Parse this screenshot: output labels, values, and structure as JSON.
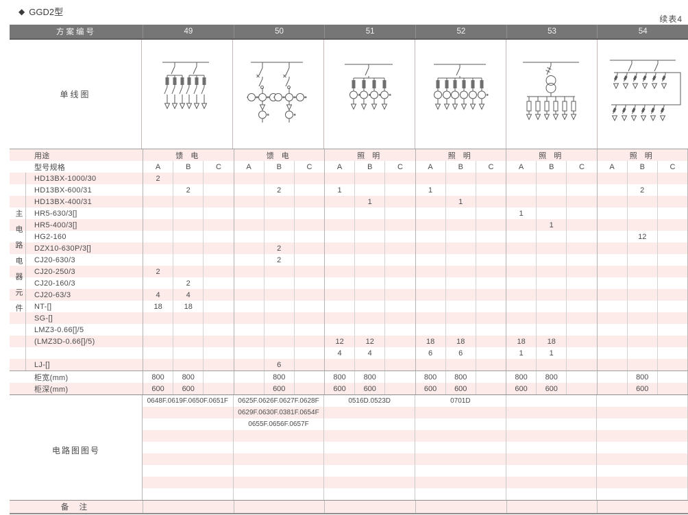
{
  "page": {
    "title_marker": "◆",
    "title": "GGD2型",
    "continuation_note": "续表4"
  },
  "header": {
    "scheme_label": "方案编号",
    "schemes": [
      "49",
      "50",
      "51",
      "52",
      "53",
      "54"
    ]
  },
  "diagram_row": {
    "label": "单线图",
    "diagrams": [
      "scheme-49-two-knife-switch-groups-six-fuse-switch-outgoing",
      "scheme-50-two-contactor-branches-with-current-transformers",
      "scheme-51-one-switch-four-fuse-ct-outgoing",
      "scheme-52-one-switch-six-fuse-ct-outgoing",
      "scheme-53-transformer-six-fuse-outgoing",
      "scheme-54-two-tier-twelve-fuse-switch-outgoing"
    ]
  },
  "usage_row": {
    "label": "用途",
    "values": [
      "馈 电",
      "馈 电",
      "照 明",
      "照 明",
      "照 明",
      "照 明"
    ]
  },
  "spec_row": {
    "label": "型号规格",
    "subcolumns": [
      "A",
      "B",
      "C"
    ]
  },
  "left_group_label": "主电路电器元件",
  "component_rows": [
    {
      "label": "HD13BX-1000/30",
      "values": [
        "2",
        "",
        "",
        "",
        "",
        "",
        "",
        "",
        "",
        "",
        "",
        "",
        "",
        "",
        "",
        "",
        "",
        ""
      ]
    },
    {
      "label": "HD13BX-600/31",
      "values": [
        "",
        "2",
        "",
        "",
        "2",
        "",
        "1",
        "",
        "",
        "1",
        "",
        "",
        "",
        "",
        "",
        "",
        "2",
        ""
      ]
    },
    {
      "label": "HD13BX-400/31",
      "values": [
        "",
        "",
        "",
        "",
        "",
        "",
        "",
        "1",
        "",
        "",
        "1",
        "",
        "",
        "",
        "",
        "",
        "",
        ""
      ]
    },
    {
      "label": "HR5-630/3[]",
      "values": [
        "",
        "",
        "",
        "",
        "",
        "",
        "",
        "",
        "",
        "",
        "",
        "",
        "1",
        "",
        "",
        "",
        "",
        ""
      ]
    },
    {
      "label": "HR5-400/3[]",
      "values": [
        "",
        "",
        "",
        "",
        "",
        "",
        "",
        "",
        "",
        "",
        "",
        "",
        "",
        "1",
        "",
        "",
        "",
        ""
      ]
    },
    {
      "label": "HG2-160",
      "values": [
        "",
        "",
        "",
        "",
        "",
        "",
        "",
        "",
        "",
        "",
        "",
        "",
        "",
        "",
        "",
        "",
        "12",
        ""
      ]
    },
    {
      "label": "DZX10-630P/3[]",
      "values": [
        "",
        "",
        "",
        "",
        "2",
        "",
        "",
        "",
        "",
        "",
        "",
        "",
        "",
        "",
        "",
        "",
        "",
        ""
      ]
    },
    {
      "label": "CJ20-630/3",
      "values": [
        "",
        "",
        "",
        "",
        "2",
        "",
        "",
        "",
        "",
        "",
        "",
        "",
        "",
        "",
        "",
        "",
        "",
        ""
      ]
    },
    {
      "label": "CJ20-250/3",
      "values": [
        "2",
        "",
        "",
        "",
        "",
        "",
        "",
        "",
        "",
        "",
        "",
        "",
        "",
        "",
        "",
        "",
        "",
        ""
      ]
    },
    {
      "label": "CJ20-160/3",
      "values": [
        "",
        "2",
        "",
        "",
        "",
        "",
        "",
        "",
        "",
        "",
        "",
        "",
        "",
        "",
        "",
        "",
        "",
        ""
      ]
    },
    {
      "label": "CJ20-63/3",
      "values": [
        "4",
        "4",
        "",
        "",
        "",
        "",
        "",
        "",
        "",
        "",
        "",
        "",
        "",
        "",
        "",
        "",
        "",
        ""
      ]
    },
    {
      "label": "NT-[]",
      "values": [
        "18",
        "18",
        "",
        "",
        "",
        "",
        "",
        "",
        "",
        "",
        "",
        "",
        "",
        "",
        "",
        "",
        "",
        ""
      ]
    },
    {
      "label": "SG-[]",
      "values": [
        "",
        "",
        "",
        "",
        "",
        "",
        "",
        "",
        "",
        "",
        "",
        "",
        "",
        "",
        "",
        "",
        "",
        ""
      ]
    },
    {
      "label": "LMZ3-0.66[]/5",
      "values": [
        "",
        "",
        "",
        "",
        "",
        "",
        "",
        "",
        "",
        "",
        "",
        "",
        "",
        "",
        "",
        "",
        "",
        ""
      ]
    },
    {
      "label": "(LMZ3D-0.66[]/5)",
      "values": [
        "",
        "",
        "",
        "",
        "",
        "",
        "12",
        "12",
        "",
        "18",
        "18",
        "",
        "18",
        "18",
        "",
        "",
        "",
        ""
      ]
    },
    {
      "label": "",
      "values": [
        "",
        "",
        "",
        "",
        "",
        "",
        "4",
        "4",
        "",
        "6",
        "6",
        "",
        "1",
        "1",
        "",
        "",
        "",
        ""
      ]
    },
    {
      "label": "LJ-[]",
      "values": [
        "",
        "",
        "",
        "",
        "6",
        "",
        "",
        "",
        "",
        "",
        "",
        "",
        "",
        "",
        "",
        "",
        "",
        ""
      ]
    }
  ],
  "width_row": {
    "label": "柜宽(mm)",
    "values": [
      "800",
      "800",
      "",
      "",
      "800",
      "",
      "800",
      "800",
      "",
      "800",
      "800",
      "",
      "800",
      "800",
      "",
      "",
      "800",
      ""
    ]
  },
  "depth_row": {
    "label": "柜深(mm)",
    "values": [
      "600",
      "600",
      "",
      "",
      "600",
      "",
      "600",
      "600",
      "",
      "600",
      "600",
      "",
      "600",
      "600",
      "",
      "",
      "600",
      ""
    ]
  },
  "drawing_no_section": {
    "label": "电路图图号",
    "rows": [
      [
        "0648F.0619F.0650F.0651F",
        "0625F.0626F.0627F.0628F",
        "0516D.0523D",
        "0701D",
        "",
        ""
      ],
      [
        "",
        "0629F.0630F.0381F.0654F",
        "",
        "",
        "",
        ""
      ],
      [
        "",
        "0655F.0656F.0657F",
        "",
        "",
        "",
        ""
      ],
      [
        "",
        "",
        "",
        "",
        "",
        ""
      ],
      [
        "",
        "",
        "",
        "",
        "",
        ""
      ],
      [
        "",
        "",
        "",
        "",
        "",
        ""
      ],
      [
        "",
        "",
        "",
        "",
        "",
        ""
      ],
      [
        "",
        "",
        "",
        "",
        "",
        ""
      ],
      [
        "",
        "",
        "",
        "",
        "",
        ""
      ]
    ]
  },
  "remarks_row": {
    "label": "备 注"
  },
  "colors": {
    "header_bg": "#767676",
    "header_text": "#f3f3f3",
    "stripe_pink": "#fcebe9",
    "grid_line_light": "#d2d2d2",
    "grid_line_major": "#b2b2b2",
    "section_rule": "#8c8c8c",
    "diagram_stroke": "#5a5a5a",
    "body_text": "#4a4a4a"
  }
}
